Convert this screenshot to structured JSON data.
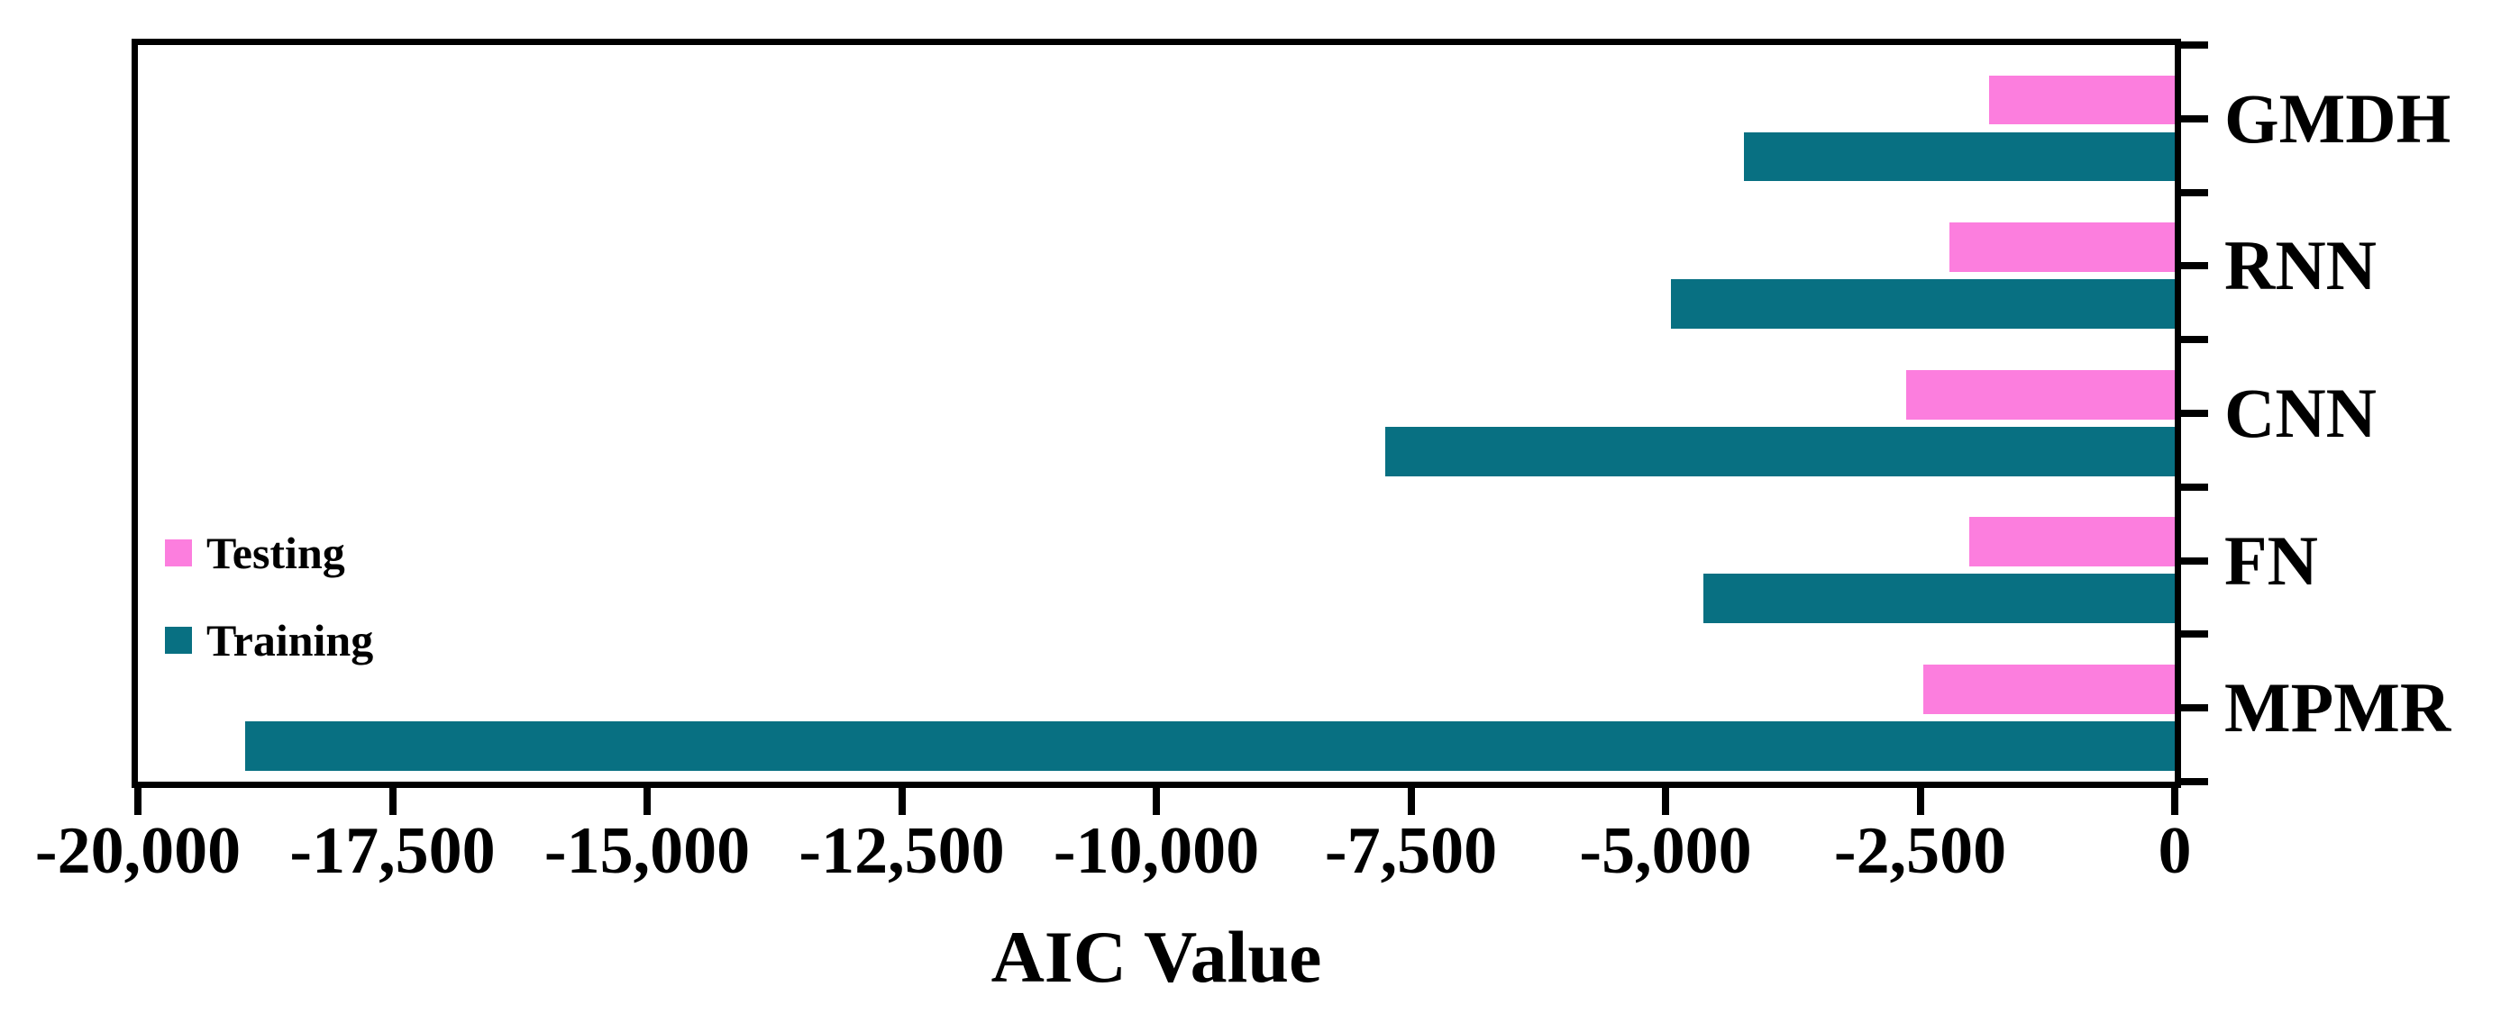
{
  "figure": {
    "background": "#ffffff",
    "axis_color": "#000000",
    "text_color": "#000000"
  },
  "chart_data": {
    "type": "bar",
    "orientation": "horizontal",
    "title": "",
    "xlabel": "AIC Value",
    "ylabel": "",
    "categories": [
      "GMDH",
      "RNN",
      "CNN",
      "FN",
      "MPMR"
    ],
    "series": [
      {
        "name": "Testing",
        "color": "#fc7ede",
        "values": [
          -1820,
          -2210,
          -2640,
          -2020,
          -2470
        ]
      },
      {
        "name": "Training",
        "color": "#087082",
        "values": [
          -4230,
          -4950,
          -7750,
          -4630,
          -18950
        ]
      }
    ],
    "xlim": [
      -20000,
      0
    ],
    "xticks": [
      -20000,
      -17500,
      -15000,
      -12500,
      -10000,
      -7500,
      -5000,
      -2500,
      0
    ],
    "xtick_labels": [
      "-20,000",
      "-17,500",
      "-15,000",
      "-12,500",
      "-10,000",
      "-7,500",
      "-5,000",
      "-2,500",
      "0"
    ],
    "legend_position": "middle-left",
    "grid": false
  }
}
